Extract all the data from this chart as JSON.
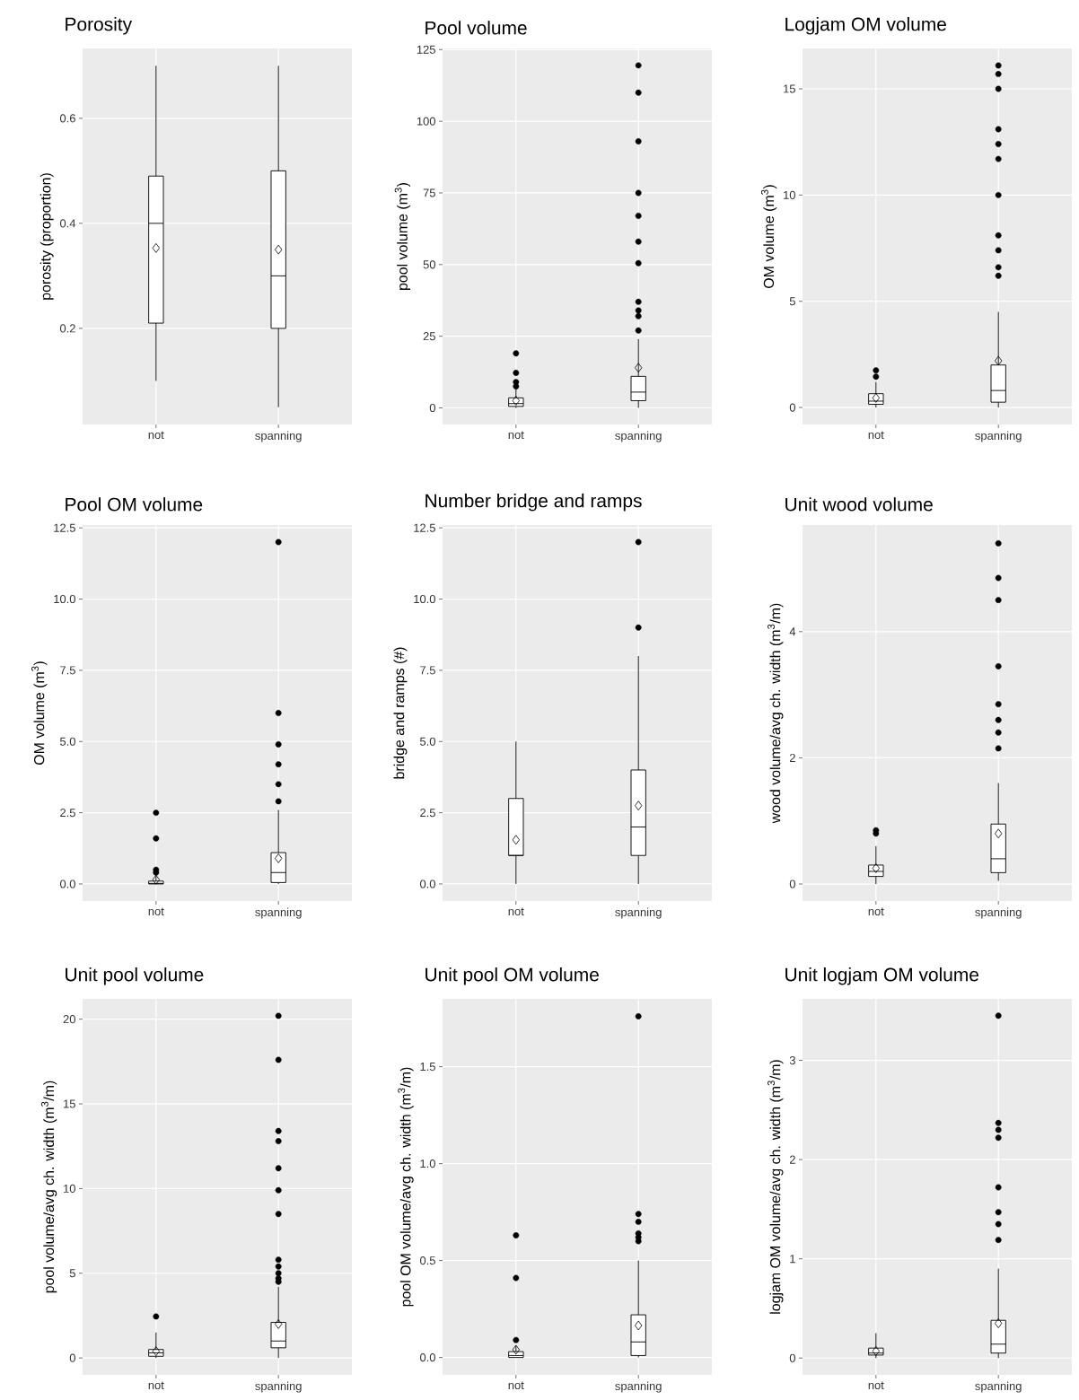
{
  "chart_data": [
    {
      "type": "box",
      "title": "Porosity",
      "ylabel": "porosity (proportion)",
      "categories": [
        "not",
        "spanning"
      ],
      "grid": true,
      "ylim": [
        0.017,
        0.733
      ],
      "yticks": [
        0.2,
        0.4,
        0.6
      ],
      "boxes": [
        {
          "low": 0.1,
          "q1": 0.21,
          "median": 0.4,
          "q3": 0.49,
          "high": 0.7,
          "mean": 0.353
        },
        {
          "low": 0.05,
          "q1": 0.2,
          "median": 0.3,
          "q3": 0.5,
          "high": 0.7,
          "mean": 0.35
        }
      ]
    },
    {
      "type": "box",
      "title": "Pool volume",
      "ylabel": "pool volume (m$^{3}$)",
      "categories": [
        "not",
        "spanning"
      ],
      "grid": true,
      "ylim": [
        -5.8,
        125.4
      ],
      "yticks": [
        0,
        25,
        50,
        75,
        100,
        125
      ],
      "boxes": [
        {
          "low": 0,
          "q1": 0.5,
          "median": 1.5,
          "q3": 3.5,
          "high": 7,
          "mean": 2.5,
          "outliers": [
            19,
            12.2,
            9,
            7.5
          ]
        },
        {
          "low": 0,
          "q1": 2.5,
          "median": 5.5,
          "q3": 11,
          "high": 24,
          "mean": 14,
          "outliers": [
            119.5,
            110,
            93,
            75,
            67,
            58,
            50.5,
            37,
            34,
            32,
            27
          ]
        }
      ]
    },
    {
      "type": "box",
      "title": "Logjam OM volume",
      "ylabel": "OM volume (m$^{3}$)",
      "categories": [
        "not",
        "spanning"
      ],
      "grid": true,
      "ylim": [
        -0.8,
        16.9
      ],
      "yticks": [
        0,
        5,
        10,
        15
      ],
      "boxes": [
        {
          "low": 0,
          "q1": 0.15,
          "median": 0.3,
          "q3": 0.65,
          "high": 1.2,
          "mean": 0.45,
          "outliers": [
            1.75,
            1.45
          ]
        },
        {
          "low": 0,
          "q1": 0.25,
          "median": 0.8,
          "q3": 2.0,
          "high": 4.5,
          "mean": 2.2,
          "outliers": [
            16.1,
            15.7,
            15.0,
            13.1,
            12.4,
            11.7,
            10.0,
            8.1,
            7.4,
            6.6,
            6.2
          ]
        }
      ]
    },
    {
      "type": "box",
      "title": "Pool OM volume",
      "ylabel": "OM volume (m$^{3}$)",
      "categories": [
        "not",
        "spanning"
      ],
      "grid": true,
      "ylim": [
        -0.6,
        12.6
      ],
      "yticks": [
        {
          "value": 0,
          "label": "0.0"
        },
        {
          "value": 2.5,
          "label": "2.5"
        },
        {
          "value": 5,
          "label": "5.0"
        },
        {
          "value": 7.5,
          "label": "7.5"
        },
        {
          "value": 10,
          "label": "10.0"
        },
        {
          "value": 12.5,
          "label": "12.5"
        }
      ],
      "boxes": [
        {
          "low": 0,
          "q1": 0,
          "median": 0.02,
          "q3": 0.1,
          "high": 0.3,
          "mean": 0.15,
          "outliers": [
            2.5,
            1.6,
            0.5,
            0.4
          ]
        },
        {
          "low": 0,
          "q1": 0.05,
          "median": 0.4,
          "q3": 1.1,
          "high": 2.6,
          "mean": 0.9,
          "outliers": [
            12,
            6,
            4.9,
            4.2,
            3.5,
            2.9
          ]
        }
      ]
    },
    {
      "type": "box",
      "title": "Number bridge and ramps",
      "ylabel": "bridge and ramps (#)",
      "categories": [
        "not",
        "spanning"
      ],
      "grid": true,
      "ylim": [
        -0.6,
        12.6
      ],
      "yticks": [
        {
          "value": 0,
          "label": "0.0"
        },
        {
          "value": 2.5,
          "label": "2.5"
        },
        {
          "value": 5,
          "label": "5.0"
        },
        {
          "value": 7.5,
          "label": "7.5"
        },
        {
          "value": 10,
          "label": "10.0"
        },
        {
          "value": 12.5,
          "label": "12.5"
        }
      ],
      "boxes": [
        {
          "low": 0,
          "q1": 1,
          "median": 1,
          "q3": 3,
          "high": 5,
          "mean": 1.55
        },
        {
          "low": 0,
          "q1": 1,
          "median": 2,
          "q3": 4,
          "high": 8,
          "mean": 2.75,
          "outliers": [
            12,
            9
          ]
        }
      ]
    },
    {
      "type": "box",
      "title": "Unit wood volume",
      "ylabel": "wood volume/avg ch. width (m$^{3}$/m)",
      "categories": [
        "not",
        "spanning"
      ],
      "grid": true,
      "ylim": [
        -0.27,
        5.69
      ],
      "yticks": [
        0,
        2,
        4
      ],
      "boxes": [
        {
          "low": 0,
          "q1": 0.12,
          "median": 0.2,
          "q3": 0.3,
          "high": 0.6,
          "mean": 0.25,
          "outliers": [
            0.85,
            0.8
          ]
        },
        {
          "low": 0.05,
          "q1": 0.18,
          "median": 0.4,
          "q3": 0.95,
          "high": 1.6,
          "mean": 0.8,
          "outliers": [
            5.4,
            4.85,
            4.5,
            3.45,
            2.85,
            2.6,
            2.4,
            2.15
          ]
        }
      ]
    },
    {
      "type": "box",
      "title": "Unit pool volume",
      "ylabel": "pool volume/avg ch. width (m$^{3}$/m)",
      "categories": [
        "not",
        "spanning"
      ],
      "grid": true,
      "ylim": [
        -1.0,
        21.2
      ],
      "yticks": [
        0,
        5,
        10,
        15,
        20
      ],
      "boxes": [
        {
          "low": 0,
          "q1": 0.1,
          "median": 0.3,
          "q3": 0.5,
          "high": 1.5,
          "mean": 0.4,
          "outliers": [
            2.45
          ]
        },
        {
          "low": 0,
          "q1": 0.6,
          "median": 1.0,
          "q3": 2.1,
          "high": 4.2,
          "mean": 2.0,
          "outliers": [
            20.2,
            17.6,
            13.4,
            12.8,
            11.2,
            9.9,
            8.5,
            5.8,
            5.4,
            5.0,
            4.7,
            4.5
          ]
        }
      ]
    },
    {
      "type": "box",
      "title": "Unit pool OM volume",
      "ylabel": "pool OM volume/avg ch. width (m$^{3}$/m)",
      "categories": [
        "not",
        "spanning"
      ],
      "grid": true,
      "ylim": [
        -0.09,
        1.85
      ],
      "yticks": [
        {
          "value": 0,
          "label": "0.0"
        },
        {
          "value": 0.5,
          "label": "0.5"
        },
        {
          "value": 1,
          "label": "1.0"
        },
        {
          "value": 1.5,
          "label": "1.5"
        }
      ],
      "boxes": [
        {
          "low": 0,
          "q1": 0,
          "median": 0.01,
          "q3": 0.03,
          "high": 0.06,
          "mean": 0.04,
          "outliers": [
            0.63,
            0.41,
            0.09
          ]
        },
        {
          "low": 0,
          "q1": 0.01,
          "median": 0.08,
          "q3": 0.22,
          "high": 0.5,
          "mean": 0.165,
          "outliers": [
            1.76,
            0.74,
            0.7,
            0.64,
            0.62,
            0.6
          ]
        }
      ]
    },
    {
      "type": "box",
      "title": "Unit logjam OM volume",
      "ylabel": "logjam OM volume/avg ch. width (m$^{3}$/m)",
      "categories": [
        "not",
        "spanning"
      ],
      "grid": true,
      "ylim": [
        -0.17,
        3.62
      ],
      "yticks": [
        0,
        1,
        2,
        3
      ],
      "boxes": [
        {
          "low": 0,
          "q1": 0.03,
          "median": 0.05,
          "q3": 0.1,
          "high": 0.25,
          "mean": 0.07
        },
        {
          "low": 0,
          "q1": 0.05,
          "median": 0.14,
          "q3": 0.38,
          "high": 0.9,
          "mean": 0.35,
          "outliers": [
            3.45,
            2.37,
            2.3,
            2.22,
            1.72,
            1.47,
            1.35,
            1.19
          ]
        }
      ]
    }
  ]
}
